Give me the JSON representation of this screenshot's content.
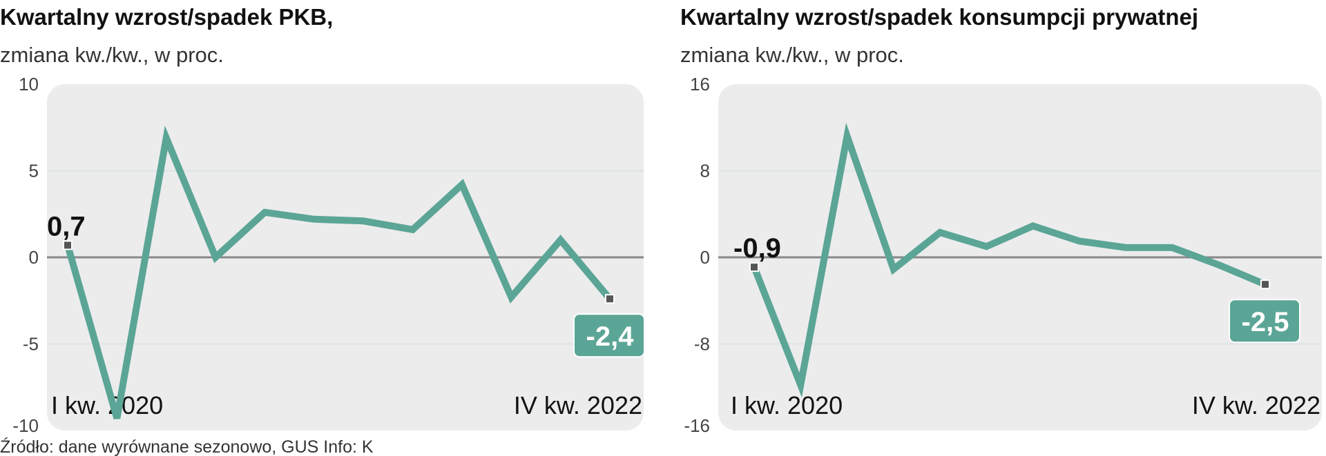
{
  "colors": {
    "line": "#5ba596",
    "zero": "#888888",
    "plot_bg": "#ececec",
    "marker": "#555555"
  },
  "chart_data": [
    {
      "type": "line",
      "title": "Kwartalny wzrost/spadek PKB,",
      "subtitle": "zmiana kw./kw., w proc.",
      "x_labels": [
        "I kw. 2020",
        "IV kw. 2022"
      ],
      "ylim": [
        -10,
        10
      ],
      "yticks": [
        "10",
        "5",
        "0",
        "-5",
        "-10"
      ],
      "ytick_values": [
        10,
        5,
        0,
        -5,
        -10
      ],
      "values": [
        0.7,
        -9.3,
        6.9,
        0.0,
        2.6,
        2.2,
        2.1,
        1.6,
        4.2,
        -2.3,
        1.0,
        -2.4
      ],
      "first_label": "0,7",
      "last_label": "-2,4",
      "grid": true
    },
    {
      "type": "line",
      "title": "Kwartalny wzrost/spadek konsumpcji prywatnej",
      "subtitle": "zmiana kw./kw., w proc.",
      "x_labels": [
        "I kw. 2020",
        "IV kw. 2022"
      ],
      "ylim": [
        -16,
        16
      ],
      "yticks": [
        "16",
        "8",
        "0",
        "-8",
        "-16"
      ],
      "ytick_values": [
        16,
        8,
        0,
        -8,
        -16
      ],
      "values": [
        -0.9,
        -11.8,
        11.2,
        -1.1,
        2.3,
        1.0,
        2.9,
        1.5,
        0.9,
        0.9,
        -0.7,
        -2.5
      ],
      "first_label": "-0,9",
      "last_label": "-2,5",
      "grid": true
    }
  ],
  "source": "Źródło: dane wyrównane sezonowo, GUS   Info: K"
}
